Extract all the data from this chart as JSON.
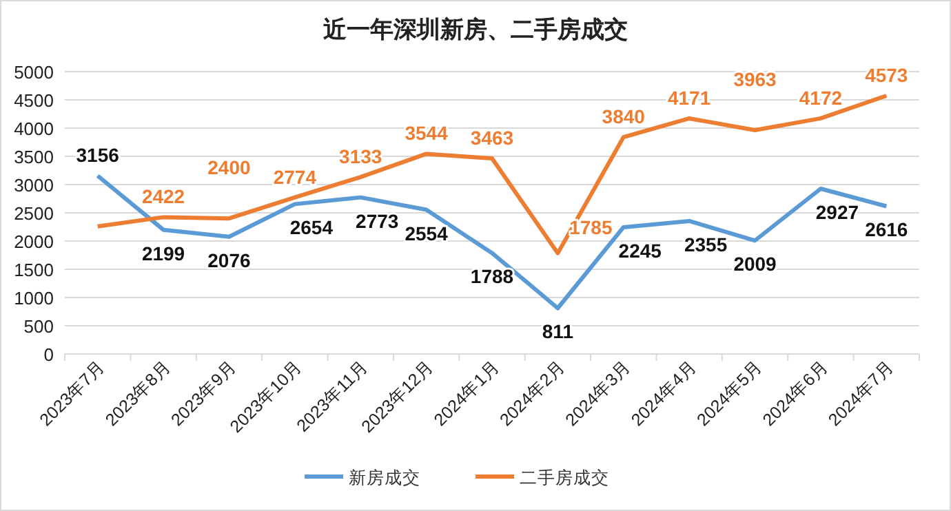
{
  "chart_data": {
    "type": "line",
    "title": "近一年深圳新房、二手房成交",
    "categories": [
      "2023年7月",
      "2023年8月",
      "2023年9月",
      "2023年10月",
      "2023年11月",
      "2023年12月",
      "2024年1月",
      "2024年2月",
      "2024年3月",
      "2024年4月",
      "2024年5月",
      "2024年6月",
      "2024年7月"
    ],
    "series": [
      {
        "name": "新房成交",
        "color": "#5b9bd5",
        "values": [
          3156,
          2199,
          2076,
          2654,
          2773,
          2554,
          1788,
          811,
          2245,
          2355,
          2009,
          2927,
          2616
        ],
        "value_labels": [
          "3156",
          "2199",
          "2076",
          "2654",
          "2773",
          "2554",
          "1788",
          "811",
          "2245",
          "2355",
          "2009",
          "2927",
          "2616"
        ]
      },
      {
        "name": "二手房成交",
        "color": "#ed7d31",
        "values": [
          2260,
          2422,
          2400,
          2774,
          3133,
          3544,
          3463,
          1785,
          3840,
          4171,
          3963,
          4172,
          4573
        ],
        "value_labels": [
          null,
          "2422",
          "2400",
          "2774",
          "3133",
          "3544",
          "3463",
          "1785",
          "3840",
          "4171",
          "3963",
          "4172",
          "4573"
        ]
      }
    ],
    "ylim": [
      0,
      5000
    ],
    "yticks": [
      0,
      500,
      1000,
      1500,
      2000,
      2500,
      3000,
      3500,
      4000,
      4500,
      5000
    ],
    "grid": "y",
    "legend": "bottom",
    "marker": "none",
    "line_style": "solid"
  }
}
